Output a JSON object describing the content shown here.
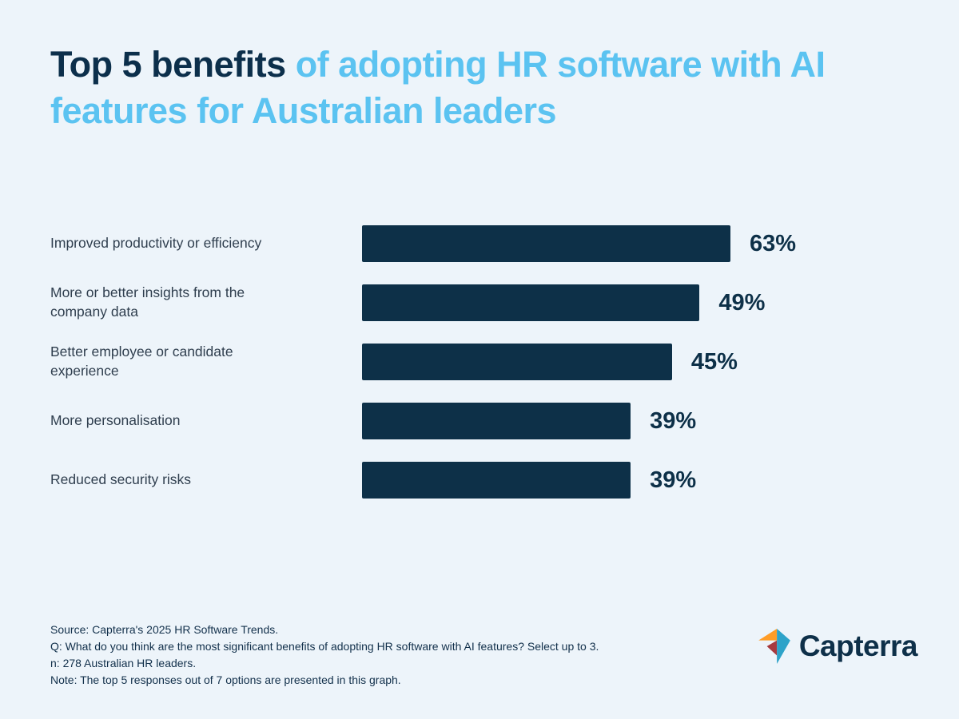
{
  "page": {
    "background_color": "#EDF4FA"
  },
  "title": {
    "dark": "Top 5 benefits",
    "light": "of adopting  HR software with AI features for Australian leaders"
  },
  "chart_data": {
    "type": "bar",
    "orientation": "horizontal",
    "title": "Top 5 benefits of adopting HR software with AI features for Australian leaders",
    "categories": [
      "Improved productivity or efficiency",
      "More or better insights from the company data",
      "Better employee or candidate experience",
      "More personalisation",
      "Reduced security risks"
    ],
    "values": [
      63,
      49,
      45,
      39,
      39
    ],
    "value_labels": [
      "63%",
      "49%",
      "45%",
      "39%",
      "39%"
    ],
    "xlabel": "",
    "ylabel": "",
    "xlim": [
      0,
      63
    ],
    "grid": false,
    "legend": false,
    "bar_color": "#0D3048"
  },
  "footer": {
    "lines": [
      "Source: Capterra's 2025 HR Software Trends.",
      "Q: What do you think are the most significant benefits of adopting HR software with AI features? Select up to 3.",
      "n: 278 Australian HR leaders.",
      "Note: The top 5 responses out of 7 options are presented in this graph."
    ]
  },
  "logo": {
    "text": "Capterra",
    "colors": {
      "orange": "#FF9D28",
      "red": "#A73A3F",
      "teal": "#2EA3C9",
      "wordmark": "#0E3049"
    }
  }
}
